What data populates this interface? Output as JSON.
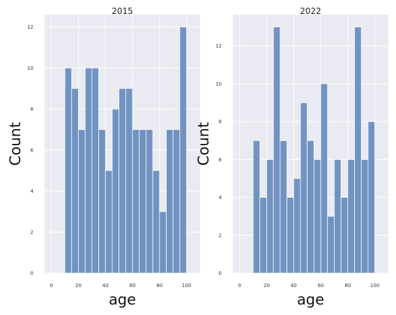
{
  "colors": {
    "panel_bg": "#eaeaf2",
    "grid": "#ffffff",
    "bar": "#7193c2",
    "bar_edge": "#ffffff"
  },
  "chart_data": [
    {
      "type": "bar",
      "title": "2015",
      "xlabel": "age",
      "ylabel": "Count",
      "grid": true,
      "bin_width": 5,
      "bin_starts": [
        10,
        15,
        20,
        25,
        30,
        35,
        40,
        45,
        50,
        55,
        60,
        65,
        70,
        75,
        80,
        85,
        90,
        95
      ],
      "values": [
        10,
        9,
        7,
        10,
        10,
        7,
        5,
        8,
        9,
        9,
        7,
        7,
        7,
        5,
        3,
        7,
        7,
        12
      ],
      "xlim": [
        -5,
        110
      ],
      "ylim": [
        0,
        12.6
      ],
      "xticks": [
        "0",
        "20",
        "40",
        "60",
        "80",
        "100"
      ],
      "yticks": [
        "0",
        "2",
        "4",
        "6",
        "8",
        "10",
        "12"
      ]
    },
    {
      "type": "bar",
      "title": "2022",
      "xlabel": "age",
      "ylabel": "Count",
      "grid": true,
      "bin_width": 5,
      "bin_starts": [
        10,
        15,
        20,
        25,
        30,
        35,
        40,
        45,
        50,
        55,
        60,
        65,
        70,
        75,
        80,
        85,
        90,
        95
      ],
      "values": [
        7,
        4,
        6,
        13,
        7,
        4,
        5,
        9,
        7,
        6,
        10,
        3,
        6,
        4,
        6,
        13,
        6,
        8
      ],
      "xlim": [
        -5,
        110
      ],
      "ylim": [
        0,
        13.65
      ],
      "xticks": [
        "0",
        "20",
        "40",
        "60",
        "80",
        "100"
      ],
      "yticks": [
        "0",
        "2",
        "4",
        "6",
        "8",
        "10",
        "12"
      ]
    }
  ]
}
